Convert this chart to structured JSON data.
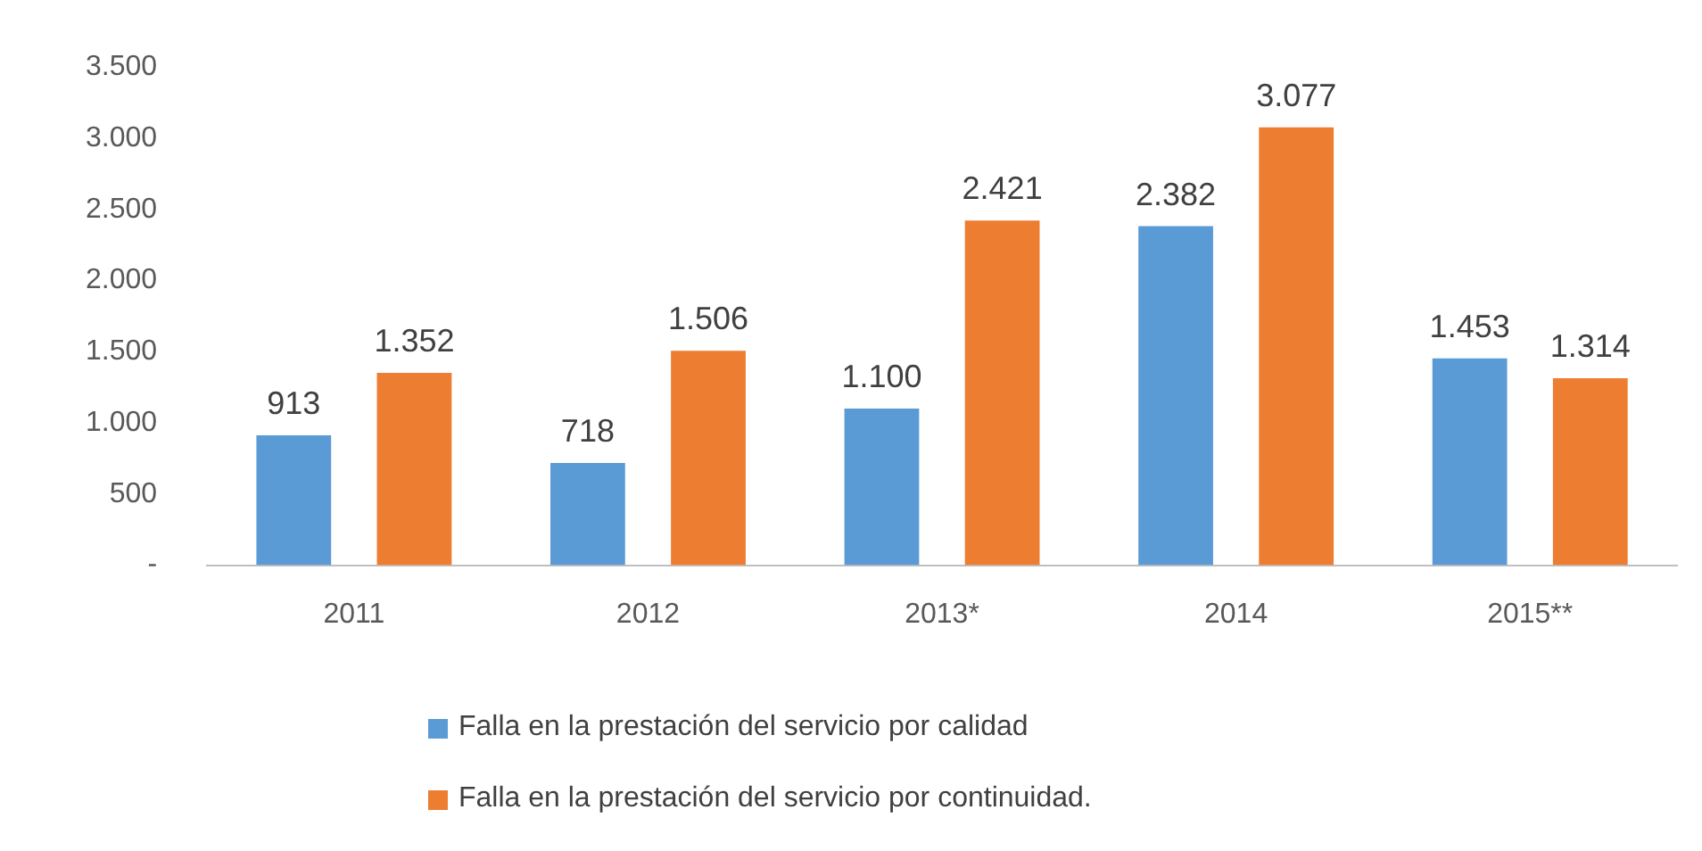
{
  "chart_data": {
    "type": "bar",
    "categories": [
      "2011",
      "2012",
      "2013*",
      "2014",
      "2015**"
    ],
    "series": [
      {
        "name": "Falla en la prestación del servicio por calidad",
        "color": "#5b9bd5",
        "values": [
          913,
          718,
          1100,
          2382,
          1453
        ],
        "value_labels": [
          "913",
          "718",
          "1.100",
          "2.382",
          "1.453"
        ]
      },
      {
        "name": "Falla en la prestación del servicio por continuidad.",
        "color": "#ed7d31",
        "values": [
          1352,
          1506,
          2421,
          3077,
          1314
        ],
        "value_labels": [
          "1.352",
          "1.506",
          "2.421",
          "3.077",
          "1.314"
        ]
      }
    ],
    "ylim": [
      0,
      3500
    ],
    "yticks": [
      {
        "value": 0,
        "label": "-"
      },
      {
        "value": 500,
        "label": "500"
      },
      {
        "value": 1000,
        "label": "1.000"
      },
      {
        "value": 1500,
        "label": "1.500"
      },
      {
        "value": 2000,
        "label": "2.000"
      },
      {
        "value": 2500,
        "label": "2.500"
      },
      {
        "value": 3000,
        "label": "3.000"
      },
      {
        "value": 3500,
        "label": "3.500"
      }
    ],
    "grid": false,
    "legend": "bottom"
  }
}
